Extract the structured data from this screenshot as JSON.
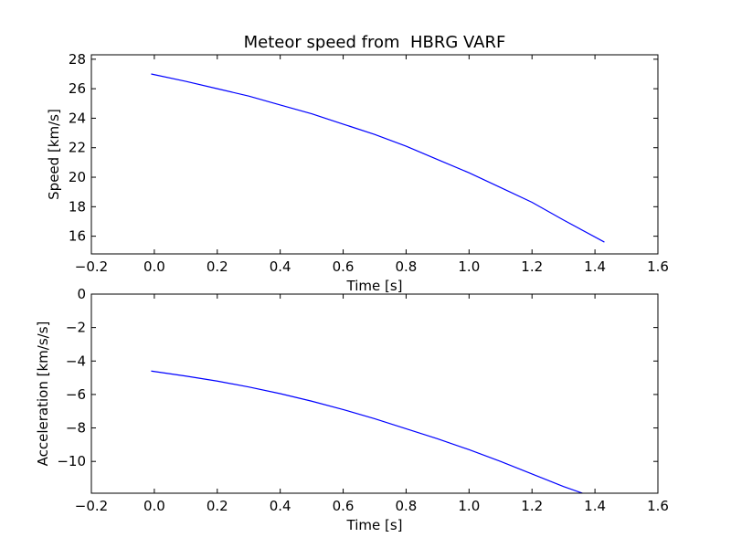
{
  "chart_data": [
    {
      "type": "line",
      "title": "Meteor speed from  HBRG VARF",
      "xlabel": "Time [s]",
      "ylabel": "Speed [km/s]",
      "xlim": [
        -0.2,
        1.6
      ],
      "ylim": [
        14.8,
        28.3
      ],
      "xticks": [
        "−0.2",
        "0.0",
        "0.2",
        "0.4",
        "0.6",
        "0.8",
        "1.0",
        "1.2",
        "1.4",
        "1.6"
      ],
      "yticks": [
        "16",
        "18",
        "20",
        "22",
        "24",
        "26",
        "28"
      ],
      "grid": false,
      "series": [
        {
          "color": "#0000ff",
          "x": [
            -0.01,
            0.1,
            0.2,
            0.3,
            0.4,
            0.5,
            0.6,
            0.7,
            0.8,
            0.9,
            1.0,
            1.1,
            1.2,
            1.3,
            1.43
          ],
          "y": [
            27.0,
            26.5,
            26.0,
            25.5,
            24.9,
            24.3,
            23.6,
            22.9,
            22.1,
            21.2,
            20.3,
            19.3,
            18.3,
            17.1,
            15.6
          ]
        }
      ]
    },
    {
      "type": "line",
      "title": "",
      "xlabel": "Time [s]",
      "ylabel": "Acceleration [km/s/s]",
      "xlim": [
        -0.2,
        1.6
      ],
      "ylim": [
        -11.9,
        0
      ],
      "xticks": [
        "−0.2",
        "0.0",
        "0.2",
        "0.4",
        "0.6",
        "0.8",
        "1.0",
        "1.2",
        "1.4",
        "1.6"
      ],
      "yticks": [
        "0",
        "−2",
        "−4",
        "−6",
        "−8",
        "−10"
      ],
      "grid": false,
      "series": [
        {
          "color": "#0000ff",
          "x": [
            -0.01,
            0.1,
            0.2,
            0.3,
            0.4,
            0.5,
            0.6,
            0.7,
            0.8,
            0.9,
            1.0,
            1.1,
            1.2,
            1.3,
            1.36
          ],
          "y": [
            -4.6,
            -4.9,
            -5.2,
            -5.55,
            -5.95,
            -6.4,
            -6.9,
            -7.45,
            -8.05,
            -8.65,
            -9.3,
            -10.0,
            -10.75,
            -11.5,
            -11.9
          ]
        }
      ]
    }
  ]
}
